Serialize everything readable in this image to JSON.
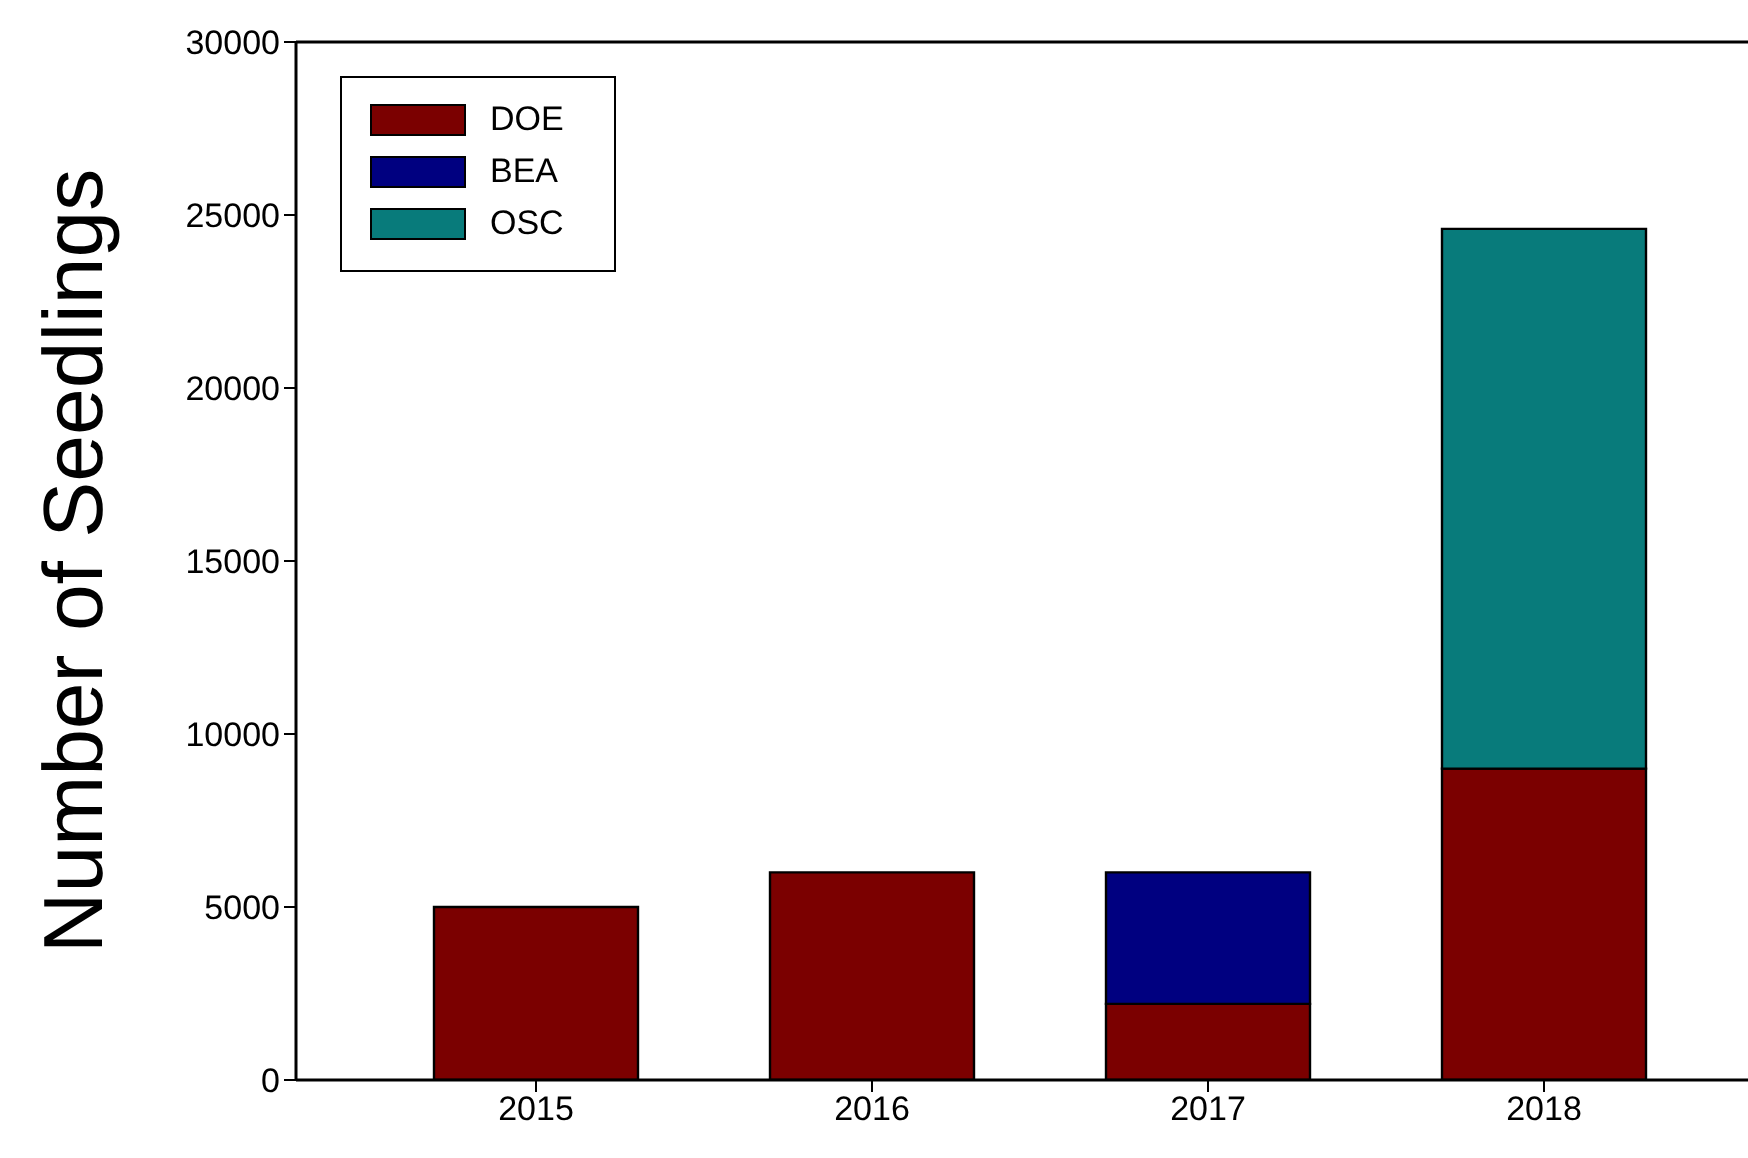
{
  "chart_data": {
    "type": "bar",
    "ylabel": "Number of Seedlings",
    "categories": [
      "2015",
      "2016",
      "2017",
      "2018"
    ],
    "stacked": true,
    "series": [
      {
        "name": "DOE",
        "color": "#7b0000",
        "values": [
          5000,
          6000,
          2200,
          9000
        ]
      },
      {
        "name": "BEA",
        "color": "#000080",
        "values": [
          null,
          null,
          3800,
          null
        ]
      },
      {
        "name": "OSC",
        "color": "#087b7b",
        "values": [
          null,
          null,
          null,
          15600
        ]
      }
    ],
    "ylim": [
      0,
      30000
    ],
    "yticks": [
      0,
      5000,
      10000,
      15000,
      20000,
      25000,
      30000
    ],
    "grid": false,
    "legend": "top left"
  }
}
